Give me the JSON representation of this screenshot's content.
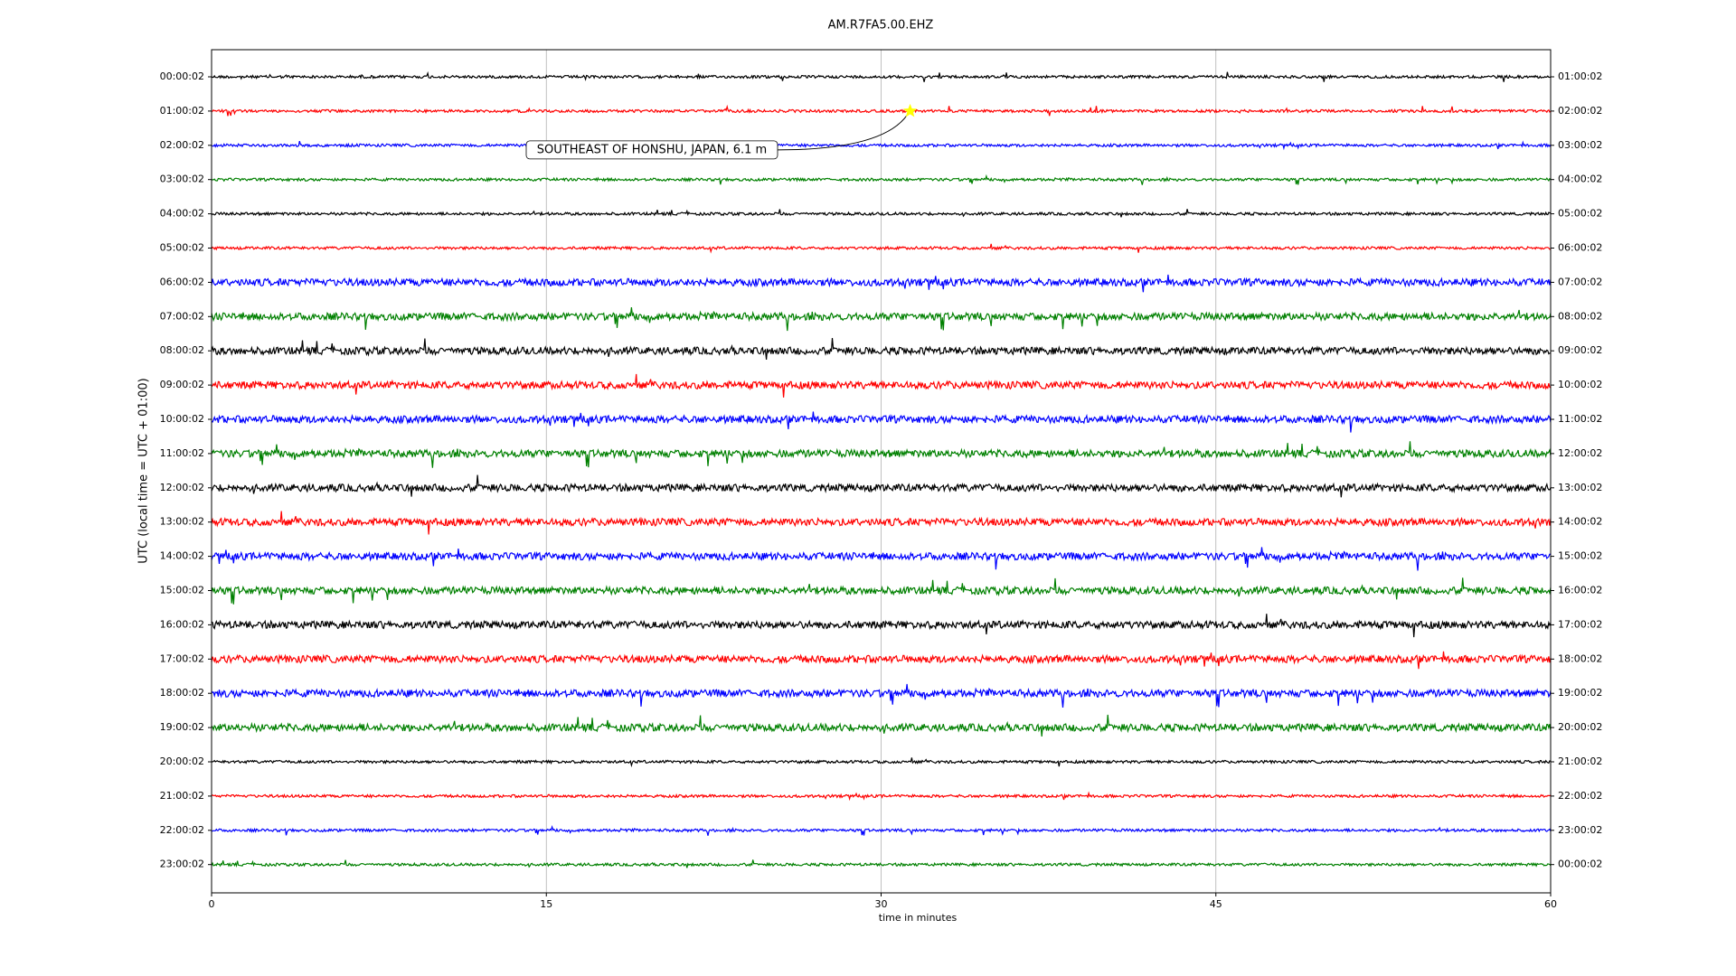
{
  "chart_data": {
    "type": "dayplot",
    "title": "AM.R7FA5.00.EHZ",
    "xlabel": "time in minutes",
    "ylabel": "UTC (local time = UTC + 01:00)",
    "xlim": [
      0,
      60
    ],
    "xticks": [
      0,
      15,
      30,
      45,
      60
    ],
    "grid": true,
    "colors": [
      "#000000",
      "#ff0000",
      "#0000ff",
      "#008000"
    ],
    "left_labels": [
      "00:00:02",
      "01:00:02",
      "02:00:02",
      "03:00:02",
      "04:00:02",
      "05:00:02",
      "06:00:02",
      "07:00:02",
      "08:00:02",
      "09:00:02",
      "10:00:02",
      "11:00:02",
      "12:00:02",
      "13:00:02",
      "14:00:02",
      "15:00:02",
      "16:00:02",
      "17:00:02",
      "18:00:02",
      "19:00:02",
      "20:00:02",
      "21:00:02",
      "22:00:02",
      "23:00:02"
    ],
    "right_labels": [
      "01:00:02",
      "02:00:02",
      "03:00:02",
      "04:00:02",
      "05:00:02",
      "06:00:02",
      "07:00:02",
      "08:00:02",
      "09:00:02",
      "10:00:02",
      "11:00:02",
      "12:00:02",
      "13:00:02",
      "14:00:02",
      "15:00:02",
      "16:00:02",
      "17:00:02",
      "18:00:02",
      "19:00:02",
      "20:00:02",
      "21:00:02",
      "22:00:02",
      "23:00:02",
      "00:00:02"
    ],
    "annotation": {
      "text": "SOUTHEAST OF HONSHU, JAPAN, 6.1 m",
      "x": 31.3,
      "row": 1,
      "marker_color": "#ffff00"
    }
  }
}
